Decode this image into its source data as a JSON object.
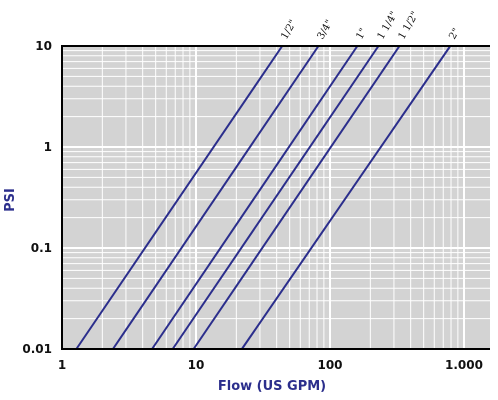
{
  "chart_data": {
    "type": "line",
    "title": "",
    "xlabel": "Flow (US GPM)",
    "ylabel": "PSI",
    "x_scale": "log",
    "y_scale": "log",
    "xlim": [
      1,
      2000
    ],
    "ylim": [
      0.01,
      10
    ],
    "x_ticks": [
      {
        "value": 1,
        "label": "1"
      },
      {
        "value": 10,
        "label": "10"
      },
      {
        "value": 100,
        "label": "100"
      },
      {
        "value": 1000,
        "label": "1.000"
      }
    ],
    "y_ticks": [
      {
        "value": 10,
        "label": "10"
      },
      {
        "value": 1,
        "label": "1"
      },
      {
        "value": 0.1,
        "label": "0.1"
      },
      {
        "value": 0.01,
        "label": "0.01"
      }
    ],
    "grid": true,
    "background_color": "#d3d3d3",
    "line_color": "#2b2e8c",
    "series": [
      {
        "name": "1/2\"",
        "x": [
          1.28,
          44
        ],
        "y": [
          0.01,
          10
        ]
      },
      {
        "name": "3/4\"",
        "x": [
          2.4,
          82
        ],
        "y": [
          0.01,
          10
        ]
      },
      {
        "name": "1\"",
        "x": [
          4.7,
          160
        ],
        "y": [
          0.01,
          10
        ]
      },
      {
        "name": "1 1/4\"",
        "x": [
          6.7,
          230
        ],
        "y": [
          0.01,
          10
        ]
      },
      {
        "name": "1 1/2\"",
        "x": [
          9.6,
          330
        ],
        "y": [
          0.01,
          10
        ]
      },
      {
        "name": "2\"",
        "x": [
          22,
          790
        ],
        "y": [
          0.01,
          10
        ]
      }
    ]
  }
}
